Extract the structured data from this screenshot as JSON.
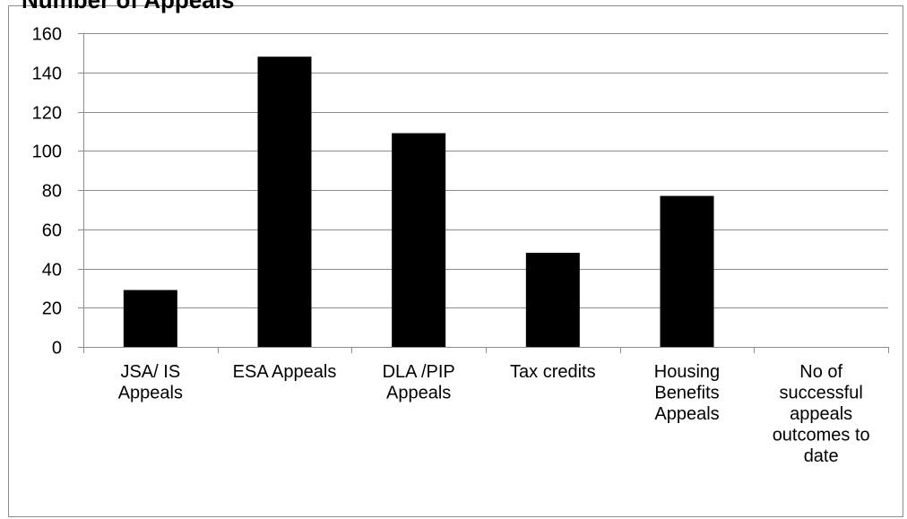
{
  "chart_data": {
    "type": "bar",
    "title": "Number of Appeals",
    "categories": [
      [
        "JSA/ IS",
        "Appeals"
      ],
      [
        "ESA Appeals"
      ],
      [
        "DLA /PIP",
        "Appeals"
      ],
      [
        "Tax credits"
      ],
      [
        "Housing",
        "Benefits",
        "Appeals"
      ],
      [
        "No  of",
        "successful",
        "appeals",
        "outcomes to",
        "date"
      ]
    ],
    "values": [
      29,
      148,
      109,
      48,
      77,
      0
    ],
    "ylim": [
      0,
      160
    ],
    "yticks": [
      0,
      20,
      40,
      60,
      80,
      100,
      120,
      140,
      160
    ],
    "grid": true,
    "legend": "none",
    "bar_color": "#000000",
    "grid_color": "#8c8c8c"
  }
}
